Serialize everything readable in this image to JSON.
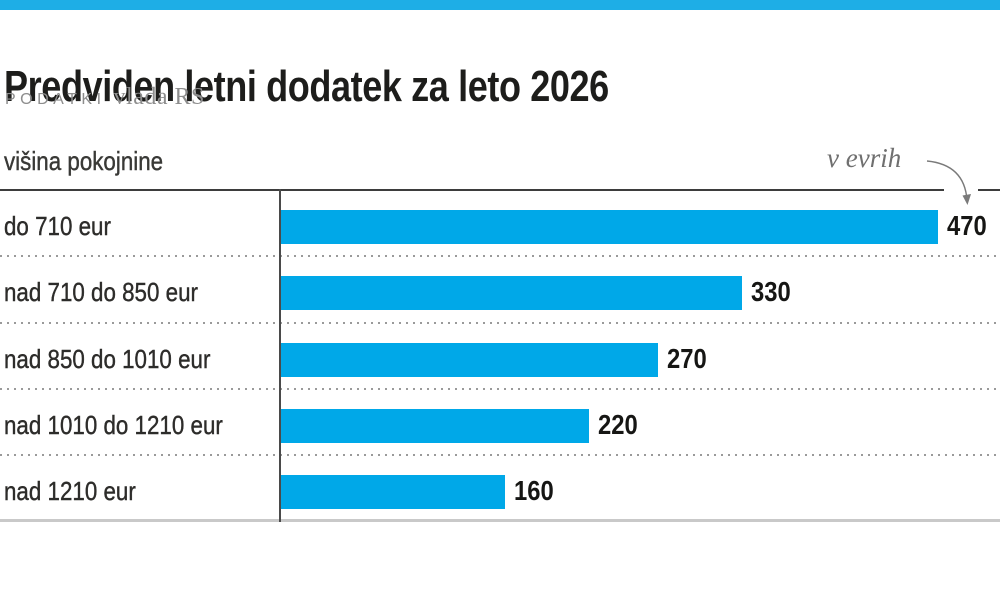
{
  "page": {
    "title": "Predviden letni dodatek za leto 2026",
    "source_label": "PODATKI",
    "source_value": "vlada RS",
    "axis_label": "višina pokojnine",
    "unit_note": "v evrih"
  },
  "chart_data": {
    "type": "bar",
    "orientation": "horizontal",
    "title": "Predviden letni dodatek za leto 2026",
    "source": "PODATKI vlada RS",
    "ylabel": "višina pokojnine",
    "unit_annotation": "v evrih",
    "categories": [
      "do 710 eur",
      "nad 710 do 850 eur",
      "nad 850 do 1010 eur",
      "nad 1010 do 1210 eur",
      "nad 1210 eur"
    ],
    "values": [
      470,
      330,
      270,
      220,
      160
    ],
    "xlim": [
      0,
      515
    ],
    "grid": false,
    "legend": false,
    "data_labels": true
  },
  "colors": {
    "top_strip": "#1eaee6",
    "bar": "#00a8e8",
    "title_text": "#1d1d1b",
    "label_text": "#2d2c2a",
    "value_text": "#161614",
    "source_text": "#8d8d8d",
    "note_text": "#6f6f6f",
    "rule_dark": "#3d3d3d",
    "axis_line": "#4a4a4a",
    "dotted_separator": "#9a9a9a",
    "baseline_light": "#c9c9c9"
  }
}
